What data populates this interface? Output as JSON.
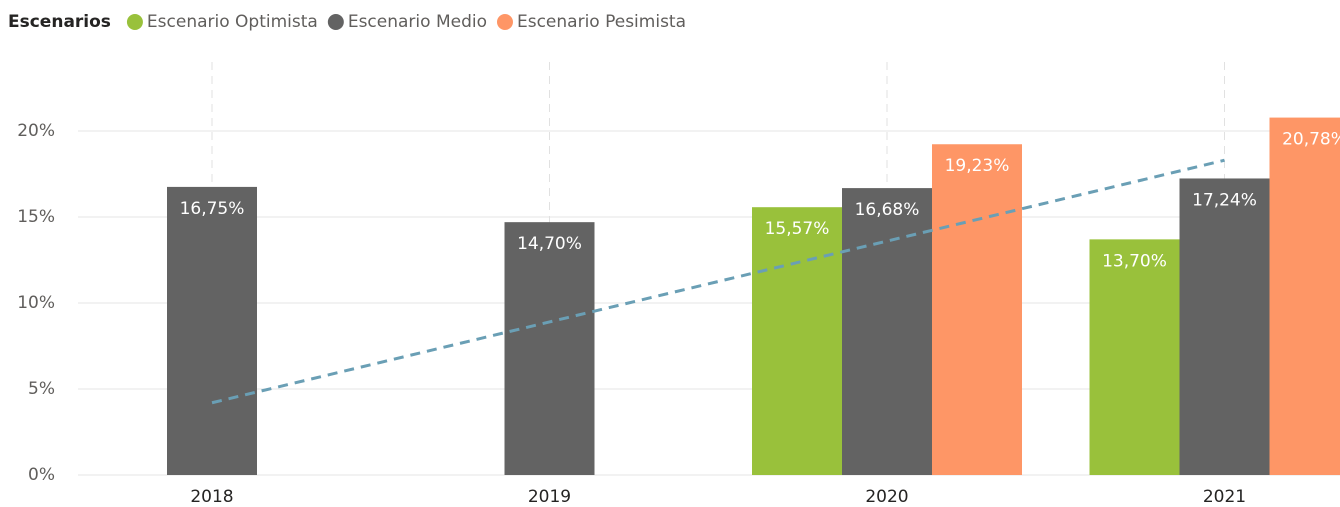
{
  "chart_data": {
    "type": "bar",
    "legend_title": "Escenarios",
    "categories": [
      "2018",
      "2019",
      "2020",
      "2021"
    ],
    "series": [
      {
        "name": "Escenario Optimista",
        "color": "#99c13b",
        "values": [
          null,
          null,
          15.57,
          13.7
        ],
        "value_labels": [
          null,
          null,
          "15,57%",
          "13,70%"
        ]
      },
      {
        "name": "Escenario Medio",
        "color": "#636363",
        "values": [
          16.75,
          14.7,
          16.68,
          17.24
        ],
        "value_labels": [
          "16,75%",
          "14,70%",
          "16,68%",
          "17,24%"
        ]
      },
      {
        "name": "Escenario Pesimista",
        "color": "#fe9666",
        "values": [
          null,
          null,
          19.23,
          20.78
        ],
        "value_labels": [
          null,
          null,
          "19,23%",
          "20,78%"
        ]
      }
    ],
    "trend_line": {
      "color": "#6a9fb5",
      "values": [
        4.2,
        8.9,
        13.6,
        18.3
      ]
    },
    "ylim": [
      0,
      21.8
    ],
    "yticks": [
      {
        "value": 0,
        "label": "0%"
      },
      {
        "value": 5,
        "label": "5%"
      },
      {
        "value": 10,
        "label": "10%"
      },
      {
        "value": 15,
        "label": "15%"
      },
      {
        "value": 20,
        "label": "20%"
      }
    ],
    "grid": true,
    "legend": "top-left"
  }
}
